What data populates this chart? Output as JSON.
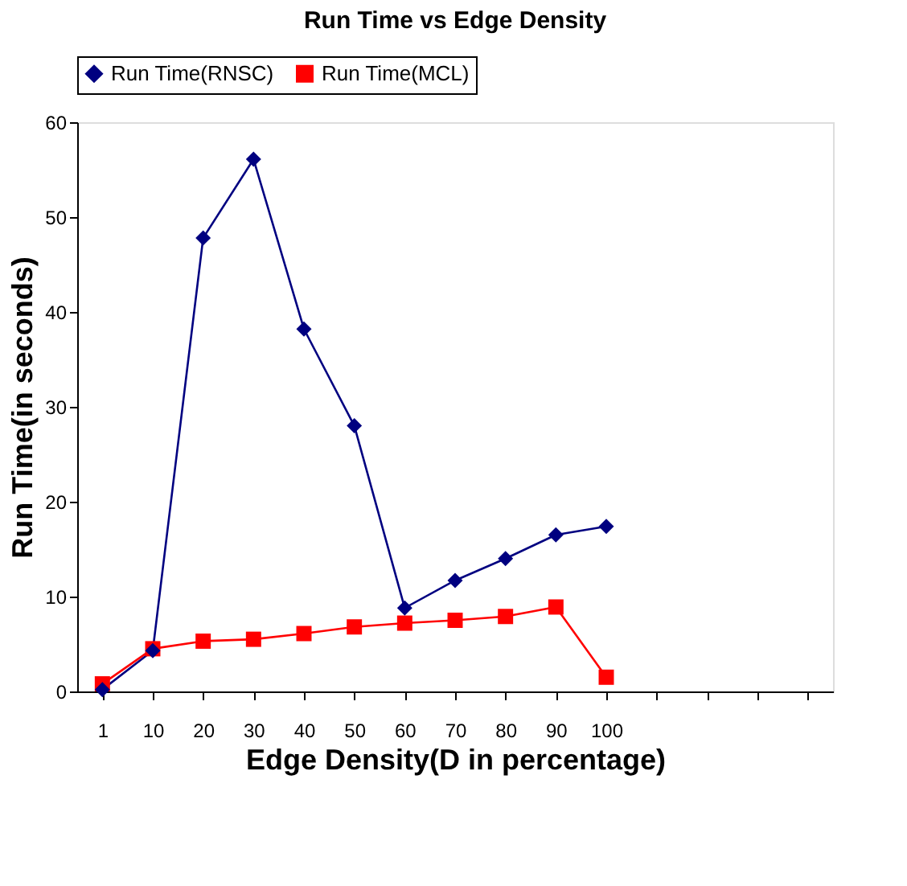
{
  "chart_data": {
    "type": "line",
    "title": "Run Time vs Edge Density",
    "xlabel": "Edge Density(D  in percentage)",
    "ylabel": "Run Time(in  seconds)",
    "categories": [
      "1",
      "10",
      "20",
      "30",
      "40",
      "50",
      "60",
      "70",
      "80",
      "90",
      "100",
      null,
      null,
      null,
      null
    ],
    "series": [
      {
        "name": "Run Time(RNSC)",
        "color": "#000080",
        "marker": "diamond",
        "values": [
          0.2,
          4.3,
          47.8,
          56.1,
          38.2,
          28.0,
          8.8,
          11.7,
          14.0,
          16.5,
          17.4,
          null,
          null,
          null,
          null
        ]
      },
      {
        "name": "Run Time(MCL)",
        "color": "#ff0000",
        "marker": "square",
        "values": [
          0.8,
          4.5,
          5.3,
          5.5,
          6.1,
          6.8,
          7.2,
          7.5,
          7.9,
          8.9,
          1.5,
          null,
          null,
          null,
          null
        ]
      }
    ],
    "ylim": [
      0,
      60
    ],
    "yticks": [
      0,
      10,
      20,
      30,
      40,
      50,
      60
    ],
    "grid": false,
    "legend": "top",
    "line_style": "solid"
  }
}
